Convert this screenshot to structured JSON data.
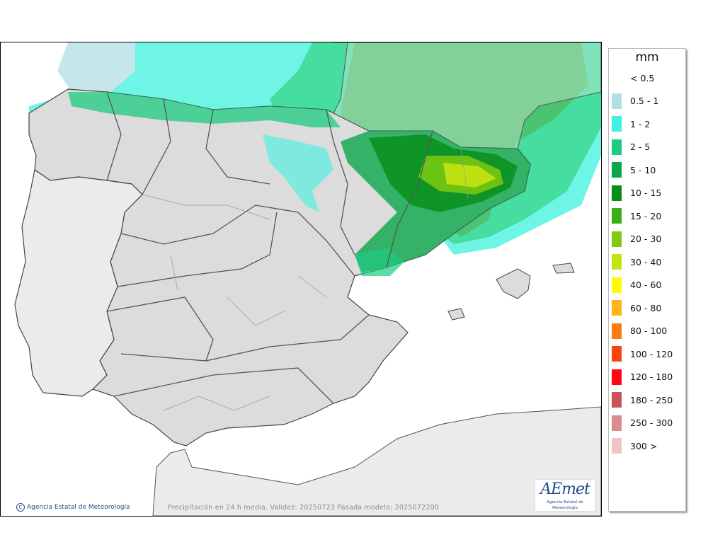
{
  "map": {
    "caption": "Precipitación en 24 h media. Validez: 20250723 Pasada modelo: 2025072200",
    "copyright": "Agencia Estatal de Meteorología",
    "logo_text": "AEmet",
    "logo_subtitle": "Agencia Estatal de Meteorología"
  },
  "legend": {
    "unit": "mm",
    "items": [
      {
        "label": "< 0.5",
        "color": ""
      },
      {
        "label": "0.5 - 1",
        "color": "#b0dfe5"
      },
      {
        "label": "1 - 2",
        "color": "#3ff2e0"
      },
      {
        "label": "2 - 5",
        "color": "#1ecb82"
      },
      {
        "label": "5 - 10",
        "color": "#0aa84a"
      },
      {
        "label": "10 - 15",
        "color": "#068d18"
      },
      {
        "label": "15 - 20",
        "color": "#3cad17"
      },
      {
        "label": "20 - 30",
        "color": "#7ecb10"
      },
      {
        "label": "30 - 40",
        "color": "#c5e40f"
      },
      {
        "label": "40 - 60",
        "color": "#fdfa07"
      },
      {
        "label": "60 - 80",
        "color": "#fcb617"
      },
      {
        "label": "80 - 100",
        "color": "#fc7c12"
      },
      {
        "label": "100 - 120",
        "color": "#fd430d"
      },
      {
        "label": "120 - 180",
        "color": "#fd0712"
      },
      {
        "label": "180 - 250",
        "color": "#c8545a"
      },
      {
        "label": "250 - 300",
        "color": "#dd8b8f"
      },
      {
        "label": "300 >",
        "color": "#eec4c4"
      }
    ]
  }
}
